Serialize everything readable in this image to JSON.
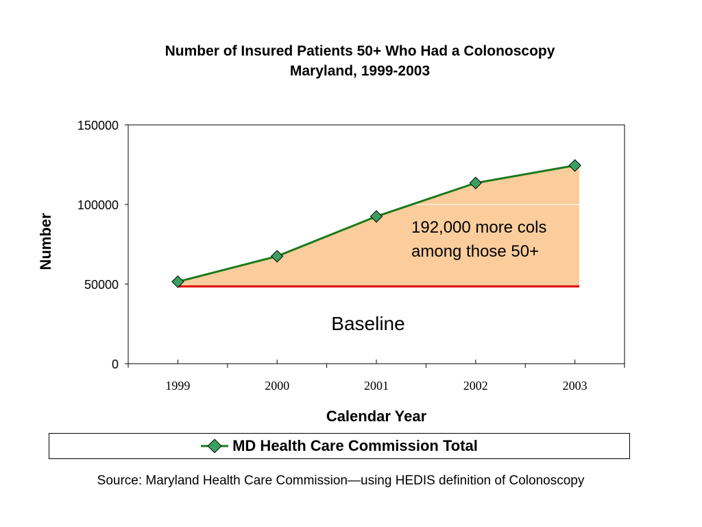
{
  "chart_data": {
    "type": "line",
    "title": "Number of Insured Patients 50+ Who Had a Colonoscopy",
    "subtitle": "Maryland, 1999-2003",
    "xlabel": "Calendar Year",
    "ylabel": "Number",
    "categories": [
      "1999",
      "2000",
      "2001",
      "2002",
      "2003"
    ],
    "ylim": [
      0,
      150000
    ],
    "yticks": [
      "0",
      "50000",
      "100000",
      "150000"
    ],
    "yticks_values": [
      0,
      50000,
      100000,
      150000
    ],
    "series": [
      {
        "name": "MD Health Care Commission Total",
        "values": [
          51500,
          67500,
          92500,
          113500,
          124500
        ],
        "color": "#1a7a1a",
        "marker_color": "#3aa060"
      }
    ],
    "baseline": {
      "value": 49000,
      "color": "#e00000"
    },
    "fill_color": "#fbcd9c",
    "grid": "y at 100000 only (white)",
    "legend": "bottom",
    "annotations": {
      "gain_line1": "192,000 more cols",
      "gain_line2": "among those 50+",
      "baseline_label": "Baseline"
    }
  },
  "source": "Source:  Maryland Health Care Commission—using HEDIS definition of Colonoscopy"
}
